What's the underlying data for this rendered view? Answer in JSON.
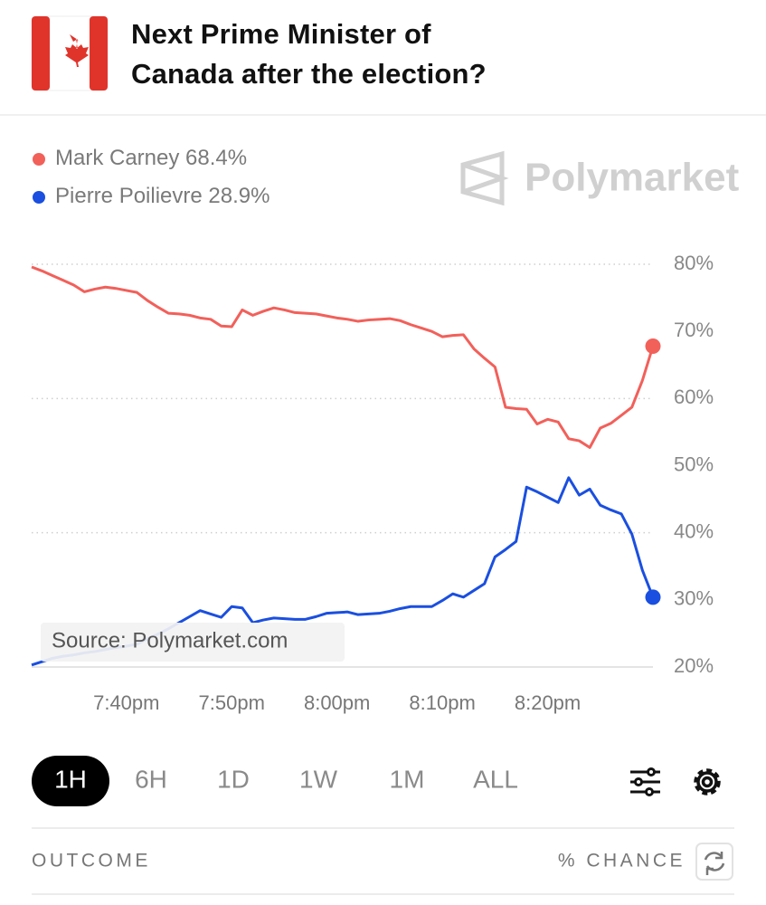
{
  "header": {
    "title": "Next Prime Minister of Canada after the election?"
  },
  "brand": "Polymarket",
  "chart_data": {
    "type": "line",
    "x": [
      "7:31pm",
      "7:32pm",
      "7:33pm",
      "7:34pm",
      "7:35pm",
      "7:36pm",
      "7:37pm",
      "7:38pm",
      "7:39pm",
      "7:40pm",
      "7:41pm",
      "7:42pm",
      "7:43pm",
      "7:44pm",
      "7:45pm",
      "7:46pm",
      "7:47pm",
      "7:48pm",
      "7:49pm",
      "7:50pm",
      "7:51pm",
      "7:52pm",
      "7:53pm",
      "7:54pm",
      "7:55pm",
      "7:56pm",
      "7:57pm",
      "7:58pm",
      "7:59pm",
      "8:00pm",
      "8:01pm",
      "8:02pm",
      "8:03pm",
      "8:04pm",
      "8:05pm",
      "8:06pm",
      "8:07pm",
      "8:08pm",
      "8:09pm",
      "8:10pm",
      "8:11pm",
      "8:12pm",
      "8:13pm",
      "8:14pm",
      "8:15pm",
      "8:16pm",
      "8:17pm",
      "8:18pm",
      "8:19pm",
      "8:20pm",
      "8:21pm",
      "8:22pm",
      "8:23pm",
      "8:24pm",
      "8:25pm",
      "8:26pm",
      "8:27pm",
      "8:28pm",
      "8:29pm",
      "8:30pm"
    ],
    "series": [
      {
        "name": "Mark Carney",
        "color": "#f2605a",
        "current": 68.4,
        "current_label": "68.4%",
        "values": [
          79.6,
          79.0,
          78.3,
          77.6,
          76.9,
          75.9,
          76.3,
          76.6,
          76.4,
          76.1,
          75.8,
          74.6,
          73.6,
          72.7,
          72.6,
          72.4,
          72.0,
          71.8,
          70.8,
          70.7,
          73.2,
          72.4,
          73.0,
          73.5,
          73.2,
          72.8,
          72.7,
          72.6,
          72.3,
          72.0,
          71.8,
          71.5,
          71.7,
          71.8,
          71.9,
          71.6,
          71.0,
          70.5,
          70.0,
          69.2,
          69.4,
          69.5,
          67.4,
          66.0,
          64.7,
          58.7,
          58.5,
          58.4,
          56.2,
          56.9,
          56.5,
          54.0,
          53.7,
          52.7,
          55.6,
          56.3,
          57.5,
          58.7,
          62.7,
          67.8
        ]
      },
      {
        "name": "Pierre Poilievre",
        "color": "#1a4fe0",
        "current": 28.9,
        "current_label": "28.9%",
        "values": [
          20.3,
          20.8,
          21.3,
          21.6,
          21.8,
          22.1,
          22.3,
          22.6,
          22.9,
          23.1,
          23.4,
          24.2,
          24.9,
          25.7,
          26.6,
          27.5,
          28.4,
          27.9,
          27.4,
          29.0,
          28.8,
          26.6,
          27.0,
          27.3,
          27.2,
          27.1,
          27.1,
          27.5,
          28.0,
          28.1,
          28.2,
          27.8,
          27.9,
          28.0,
          28.3,
          28.7,
          29.0,
          29.0,
          29.0,
          29.9,
          30.9,
          30.4,
          31.4,
          32.4,
          36.4,
          37.5,
          38.7,
          46.8,
          46.1,
          45.3,
          44.5,
          48.2,
          45.6,
          46.5,
          44.1,
          43.4,
          42.8,
          39.8,
          34.4,
          30.4
        ]
      }
    ],
    "ylim": [
      20,
      80
    ],
    "yticks": [
      {
        "value": 20,
        "label": "20%"
      },
      {
        "value": 30,
        "label": "30%"
      },
      {
        "value": 40,
        "label": "40%"
      },
      {
        "value": 50,
        "label": "50%"
      },
      {
        "value": 60,
        "label": "60%"
      },
      {
        "value": 70,
        "label": "70%"
      },
      {
        "value": 80,
        "label": "80%"
      }
    ],
    "xticks": [
      "7:40pm",
      "7:50pm",
      "8:00pm",
      "8:10pm",
      "8:20pm"
    ],
    "annotation": "Source: Polymarket.com"
  },
  "tabs": [
    "1H",
    "6H",
    "1D",
    "1W",
    "1M",
    "ALL"
  ],
  "table_header": {
    "outcome": "OUTCOME",
    "chance": "% CHANCE"
  }
}
